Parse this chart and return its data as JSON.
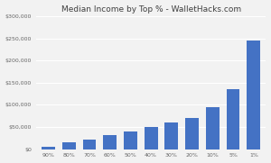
{
  "title": "Median Income by Top % - WalletHacks.com",
  "categories": [
    "90%",
    "80%",
    "70%",
    "60%",
    "50%",
    "40%",
    "30%",
    "20%",
    "10%",
    "5%",
    "1%"
  ],
  "values": [
    5000,
    15000,
    22000,
    32000,
    40000,
    50000,
    60000,
    70000,
    95000,
    135000,
    245000
  ],
  "bar_color": "#4472C4",
  "ylim": [
    0,
    300000
  ],
  "yticks": [
    0,
    50000,
    100000,
    150000,
    200000,
    250000,
    300000
  ],
  "background_color": "#F2F2F2",
  "plot_bg_color": "#F2F2F2",
  "grid_color": "#FFFFFF",
  "title_fontsize": 6.5,
  "tick_fontsize": 4.5,
  "title_color": "#404040"
}
